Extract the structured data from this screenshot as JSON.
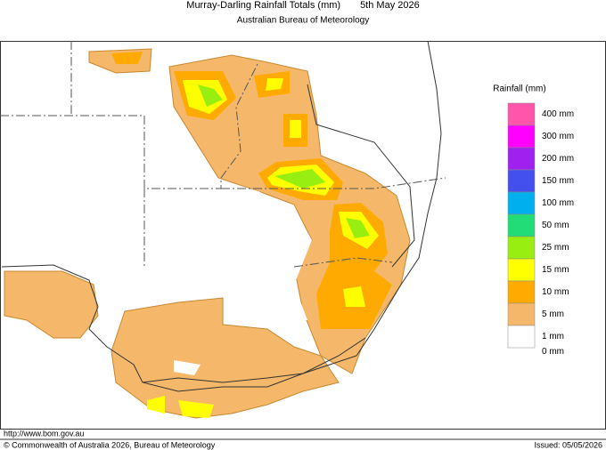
{
  "header": {
    "title": "Murray-Darling Rainfall Totals (mm)",
    "date": "5th May 2026",
    "subtitle": "Australian Bureau of Meteorology"
  },
  "legend": {
    "title": "Rainfall (mm)",
    "items": [
      {
        "label": "400 mm",
        "color": "#ff55aa"
      },
      {
        "label": "300 mm",
        "color": "#ff00ff"
      },
      {
        "label": "200 mm",
        "color": "#a020f0"
      },
      {
        "label": "150 mm",
        "color": "#4450ee"
      },
      {
        "label": "100 mm",
        "color": "#00b0ee"
      },
      {
        "label": "50 mm",
        "color": "#22dd77"
      },
      {
        "label": "25 mm",
        "color": "#99ee11"
      },
      {
        "label": "15 mm",
        "color": "#ffff00"
      },
      {
        "label": "10 mm",
        "color": "#ffaa00"
      },
      {
        "label": "5 mm",
        "color": "#f5b86a"
      },
      {
        "label": "1 mm",
        "color": "#ffffff"
      },
      {
        "label": "0 mm",
        "color": "#ffffff"
      }
    ]
  },
  "footer": {
    "url": "http://www.bom.gov.au",
    "copyright": "© Commonwealth of Australia 2026, Bureau of Meteorology",
    "issued": "Issued: 05/05/2026"
  }
}
